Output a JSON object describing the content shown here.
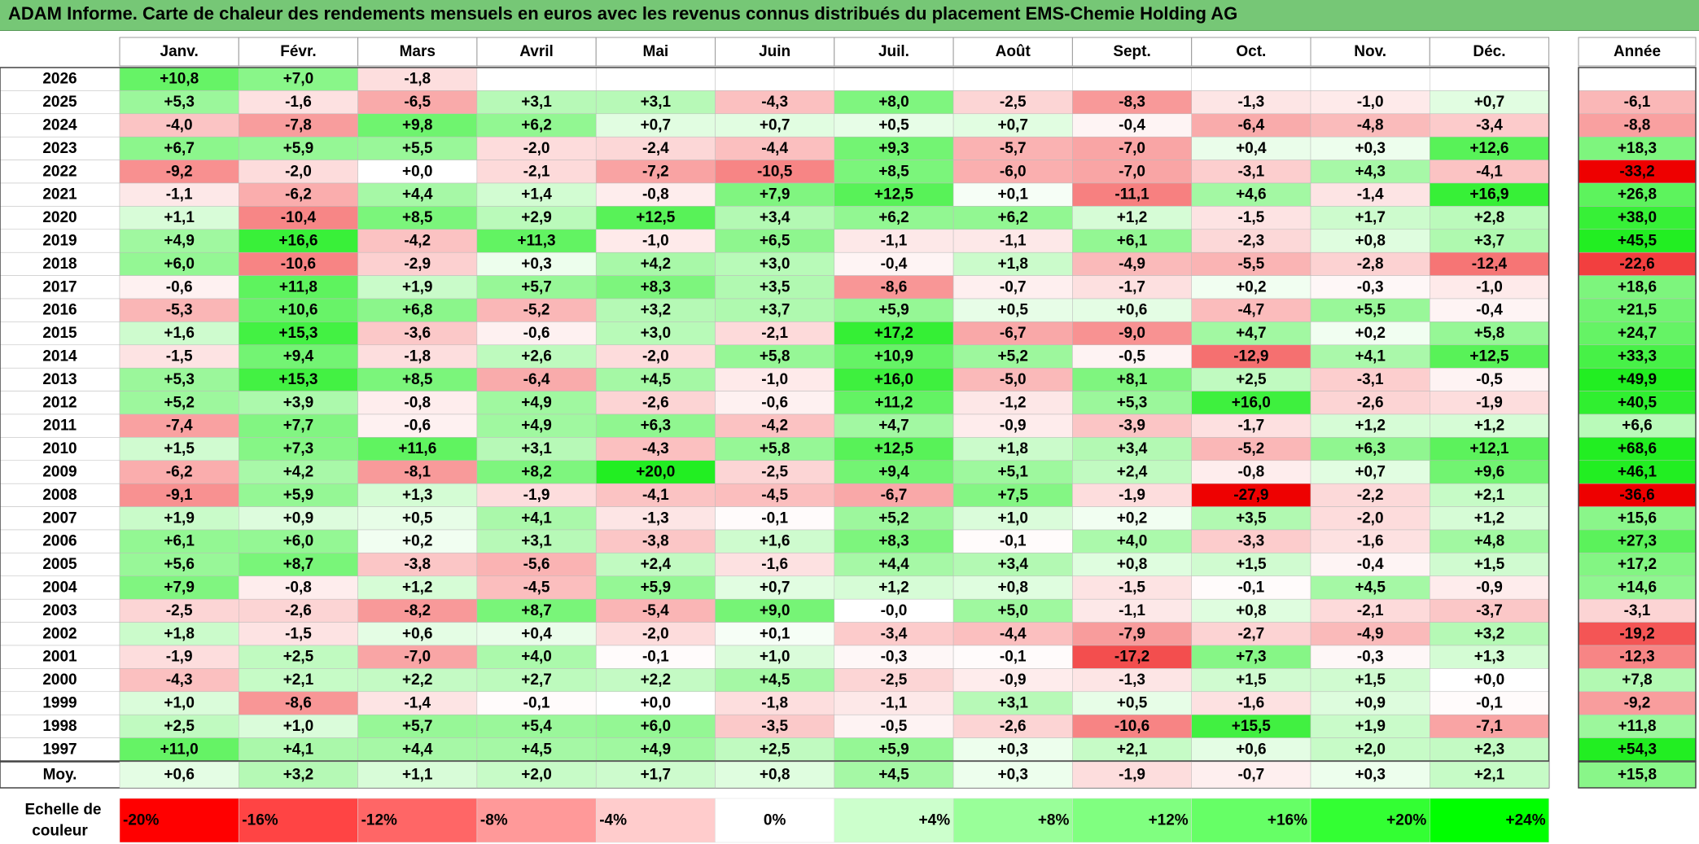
{
  "title": "ADAM Informe. Carte de chaleur des rendements mensuels en euros avec les revenus connus distribués du placement EMS-Chemie Holding AG",
  "chart_data": {
    "type": "heatmap",
    "months": [
      "Janv.",
      "Févr.",
      "Mars",
      "Avril",
      "Mai",
      "Juin",
      "Juil.",
      "Août",
      "Sept.",
      "Oct.",
      "Nov.",
      "Déc."
    ],
    "year_header": "Année",
    "rows": [
      {
        "year": "2026",
        "values": [
          "+10,8",
          "+7,0",
          "-1,8",
          "",
          "",
          "",
          "",
          "",
          "",
          "",
          "",
          ""
        ],
        "annual": ""
      },
      {
        "year": "2025",
        "values": [
          "+5,3",
          "-1,6",
          "-6,5",
          "+3,1",
          "+3,1",
          "-4,3",
          "+8,0",
          "-2,5",
          "-8,3",
          "-1,3",
          "-1,0",
          "+0,7"
        ],
        "annual": "-6,1"
      },
      {
        "year": "2024",
        "values": [
          "-4,0",
          "-7,8",
          "+9,8",
          "+6,2",
          "+0,7",
          "+0,7",
          "+0,5",
          "+0,7",
          "-0,4",
          "-6,4",
          "-4,8",
          "-3,4"
        ],
        "annual": "-8,8"
      },
      {
        "year": "2023",
        "values": [
          "+6,7",
          "+5,9",
          "+5,5",
          "-2,0",
          "-2,4",
          "-4,4",
          "+9,3",
          "-5,7",
          "-7,0",
          "+0,4",
          "+0,3",
          "+12,6"
        ],
        "annual": "+18,3"
      },
      {
        "year": "2022",
        "values": [
          "-9,2",
          "-2,0",
          "+0,0",
          "-2,1",
          "-7,2",
          "-10,5",
          "+8,5",
          "-6,0",
          "-7,0",
          "-3,1",
          "+4,3",
          "-4,1"
        ],
        "annual": "-33,2"
      },
      {
        "year": "2021",
        "values": [
          "-1,1",
          "-6,2",
          "+4,4",
          "+1,4",
          "-0,8",
          "+7,9",
          "+12,5",
          "+0,1",
          "-11,1",
          "+4,6",
          "-1,4",
          "+16,9"
        ],
        "annual": "+26,8"
      },
      {
        "year": "2020",
        "values": [
          "+1,1",
          "-10,4",
          "+8,5",
          "+2,9",
          "+12,5",
          "+3,4",
          "+6,2",
          "+6,2",
          "+1,2",
          "-1,5",
          "+1,7",
          "+2,8"
        ],
        "annual": "+38,0"
      },
      {
        "year": "2019",
        "values": [
          "+4,9",
          "+16,6",
          "-4,2",
          "+11,3",
          "-1,0",
          "+6,5",
          "-1,1",
          "-1,1",
          "+6,1",
          "-2,3",
          "+0,8",
          "+3,7"
        ],
        "annual": "+45,5"
      },
      {
        "year": "2018",
        "values": [
          "+6,0",
          "-10,6",
          "-2,9",
          "+0,3",
          "+4,2",
          "+3,0",
          "-0,4",
          "+1,8",
          "-4,9",
          "-5,5",
          "-2,8",
          "-12,4"
        ],
        "annual": "-22,6"
      },
      {
        "year": "2017",
        "values": [
          "-0,6",
          "+11,8",
          "+1,9",
          "+5,7",
          "+8,3",
          "+3,5",
          "-8,6",
          "-0,7",
          "-1,7",
          "+0,2",
          "-0,3",
          "-1,0"
        ],
        "annual": "+18,6"
      },
      {
        "year": "2016",
        "values": [
          "-5,3",
          "+10,6",
          "+6,8",
          "-5,2",
          "+3,2",
          "+3,7",
          "+5,9",
          "+0,5",
          "+0,6",
          "-4,7",
          "+5,5",
          "-0,4"
        ],
        "annual": "+21,5"
      },
      {
        "year": "2015",
        "values": [
          "+1,6",
          "+15,3",
          "-3,6",
          "-0,6",
          "+3,0",
          "-2,1",
          "+17,2",
          "-6,7",
          "-9,0",
          "+4,7",
          "+0,2",
          "+5,8"
        ],
        "annual": "+24,7"
      },
      {
        "year": "2014",
        "values": [
          "-1,5",
          "+9,4",
          "-1,8",
          "+2,6",
          "-2,0",
          "+5,8",
          "+10,9",
          "+5,2",
          "-0,5",
          "-12,9",
          "+4,1",
          "+12,5"
        ],
        "annual": "+33,3"
      },
      {
        "year": "2013",
        "values": [
          "+5,3",
          "+15,3",
          "+8,5",
          "-6,4",
          "+4,5",
          "-1,0",
          "+16,0",
          "-5,0",
          "+8,1",
          "+2,5",
          "-3,1",
          "-0,5"
        ],
        "annual": "+49,9"
      },
      {
        "year": "2012",
        "values": [
          "+5,2",
          "+3,9",
          "-0,8",
          "+4,9",
          "-2,6",
          "-0,6",
          "+11,2",
          "-1,2",
          "+5,3",
          "+16,0",
          "-2,6",
          "-1,9"
        ],
        "annual": "+40,5"
      },
      {
        "year": "2011",
        "values": [
          "-7,4",
          "+7,7",
          "-0,6",
          "+4,9",
          "+6,3",
          "-4,2",
          "+4,7",
          "-0,9",
          "-3,9",
          "-1,7",
          "+1,2",
          "+1,2"
        ],
        "annual": "+6,6"
      },
      {
        "year": "2010",
        "values": [
          "+1,5",
          "+7,3",
          "+11,6",
          "+3,1",
          "-4,3",
          "+5,8",
          "+12,5",
          "+1,8",
          "+3,4",
          "-5,2",
          "+6,3",
          "+12,1"
        ],
        "annual": "+68,6"
      },
      {
        "year": "2009",
        "values": [
          "-6,2",
          "+4,2",
          "-8,1",
          "+8,2",
          "+20,0",
          "-2,5",
          "+9,4",
          "+5,1",
          "+2,4",
          "-0,8",
          "+0,7",
          "+9,6"
        ],
        "annual": "+46,1"
      },
      {
        "year": "2008",
        "values": [
          "-9,1",
          "+5,9",
          "+1,3",
          "-1,9",
          "-4,1",
          "-4,5",
          "-6,7",
          "+7,5",
          "-1,9",
          "-27,9",
          "-2,2",
          "+2,1"
        ],
        "annual": "-36,6"
      },
      {
        "year": "2007",
        "values": [
          "+1,9",
          "+0,9",
          "+0,5",
          "+4,1",
          "-1,3",
          "-0,1",
          "+5,2",
          "+1,0",
          "+0,2",
          "+3,5",
          "-2,0",
          "+1,2"
        ],
        "annual": "+15,6"
      },
      {
        "year": "2006",
        "values": [
          "+6,1",
          "+6,0",
          "+0,2",
          "+3,1",
          "-3,8",
          "+1,6",
          "+8,3",
          "-0,1",
          "+4,0",
          "-3,3",
          "-1,6",
          "+4,8"
        ],
        "annual": "+27,3"
      },
      {
        "year": "2005",
        "values": [
          "+5,6",
          "+8,7",
          "-3,8",
          "-5,6",
          "+2,4",
          "-1,6",
          "+4,4",
          "+3,4",
          "+0,8",
          "+1,5",
          "-0,4",
          "+1,5"
        ],
        "annual": "+17,2"
      },
      {
        "year": "2004",
        "values": [
          "+7,9",
          "-0,8",
          "+1,2",
          "-4,5",
          "+5,9",
          "+0,7",
          "+1,2",
          "+0,8",
          "-1,5",
          "-0,1",
          "+4,5",
          "-0,9"
        ],
        "annual": "+14,6"
      },
      {
        "year": "2003",
        "values": [
          "-2,5",
          "-2,6",
          "-8,2",
          "+8,7",
          "-5,4",
          "+9,0",
          "-0,0",
          "+5,0",
          "-1,1",
          "+0,8",
          "-2,1",
          "-3,7"
        ],
        "annual": "-3,1"
      },
      {
        "year": "2002",
        "values": [
          "+1,8",
          "-1,5",
          "+0,6",
          "+0,4",
          "-2,0",
          "+0,1",
          "-3,4",
          "-4,4",
          "-7,9",
          "-2,7",
          "-4,9",
          "+3,2"
        ],
        "annual": "-19,2"
      },
      {
        "year": "2001",
        "values": [
          "-1,9",
          "+2,5",
          "-7,0",
          "+4,0",
          "-0,1",
          "+1,0",
          "-0,3",
          "-0,1",
          "-17,2",
          "+7,3",
          "-0,3",
          "+1,3"
        ],
        "annual": "-12,3"
      },
      {
        "year": "2000",
        "values": [
          "-4,3",
          "+2,1",
          "+2,2",
          "+2,7",
          "+2,2",
          "+4,5",
          "-2,5",
          "-0,9",
          "-1,3",
          "+1,5",
          "+1,5",
          "+0,0"
        ],
        "annual": "+7,8"
      },
      {
        "year": "1999",
        "values": [
          "+1,0",
          "-8,6",
          "-1,4",
          "-0,1",
          "+0,0",
          "-1,8",
          "-1,1",
          "+3,1",
          "+0,5",
          "-1,6",
          "+0,9",
          "-0,1"
        ],
        "annual": "-9,2"
      },
      {
        "year": "1998",
        "values": [
          "+2,5",
          "+1,0",
          "+5,7",
          "+5,4",
          "+6,0",
          "-3,5",
          "-0,5",
          "-2,6",
          "-10,6",
          "+15,5",
          "+1,9",
          "-7,1"
        ],
        "annual": "+11,8"
      },
      {
        "year": "1997",
        "values": [
          "+11,0",
          "+4,1",
          "+4,4",
          "+4,5",
          "+4,9",
          "+2,5",
          "+5,9",
          "+0,3",
          "+2,1",
          "+0,6",
          "+2,0",
          "+2,3"
        ],
        "annual": "+54,3"
      }
    ],
    "average": {
      "label": "Moy.",
      "values": [
        "+0,6",
        "+3,2",
        "+1,1",
        "+2,0",
        "+1,7",
        "+0,8",
        "+4,5",
        "+0,3",
        "-1,9",
        "-0,7",
        "+0,3",
        "+2,1"
      ],
      "annual": "+15,8"
    },
    "scale": {
      "label": [
        "Echelle de",
        "couleur"
      ],
      "stops": [
        "-20%",
        "-16%",
        "-12%",
        "-8%",
        "-4%",
        "0%",
        "+4%",
        "+8%",
        "+12%",
        "+16%",
        "+20%",
        "+24%"
      ],
      "stop_values": [
        -20,
        -16,
        -12,
        -8,
        -4,
        0,
        4,
        8,
        12,
        16,
        20,
        24
      ],
      "colors": [
        "#ff0000",
        "#ff4444",
        "#ff6666",
        "#ff9999",
        "#ffcccc",
        "#ffffff",
        "#ccffcc",
        "#99ff99",
        "#80ff80",
        "#66ff66",
        "#33ff33",
        "#00ff00"
      ]
    }
  }
}
